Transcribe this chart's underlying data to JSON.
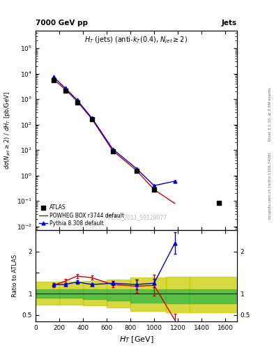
{
  "title_left": "7000 GeV pp",
  "title_right": "Jets",
  "watermark": "ATLAS_2011_S9128077",
  "right_label_top": "Rivet 3.1.10, ≥ 3.5M events",
  "right_label_bot": "mcplots.cern.ch [arXiv:1306.3436]",
  "xlabel": "$H_T$ [GeV]",
  "ylabel_main": "$d\\sigma(N_{jet} \\geq 2) / dH_{T}$ [pb/GeV]",
  "ylabel_ratio": "Ratio to ATLAS",
  "xlim": [
    0,
    1700
  ],
  "ylim_main_log": [
    0.007,
    500000.0
  ],
  "ylim_ratio": [
    0.35,
    2.5
  ],
  "atlas_x": [
    150,
    250,
    350,
    475,
    650,
    850,
    1000,
    1550
  ],
  "atlas_y": [
    5500,
    2200,
    750,
    160,
    9.0,
    1.5,
    0.27,
    0.085
  ],
  "powheg_x": [
    150,
    250,
    350,
    475,
    650,
    850,
    1000,
    1175
  ],
  "powheg_y": [
    6000,
    2400,
    820,
    165,
    9.5,
    1.6,
    0.28,
    0.08
  ],
  "pythia_x": [
    150,
    250,
    350,
    475,
    650,
    850,
    1000,
    1175
  ],
  "pythia_y": [
    7500,
    2700,
    920,
    180,
    11.0,
    1.9,
    0.4,
    0.6
  ],
  "powheg_ratio_x": [
    150,
    250,
    350,
    475,
    650,
    850,
    1000,
    1175
  ],
  "powheg_ratio_y": [
    1.2,
    1.3,
    1.42,
    1.38,
    1.22,
    1.18,
    1.2,
    0.38
  ],
  "powheg_ratio_yerr": [
    0.04,
    0.05,
    0.05,
    0.05,
    0.07,
    0.15,
    0.25,
    0.15
  ],
  "pythia_ratio_x": [
    150,
    250,
    350,
    475,
    650,
    850,
    1000,
    1175
  ],
  "pythia_ratio_y": [
    1.22,
    1.22,
    1.28,
    1.22,
    1.25,
    1.22,
    1.25,
    2.2
  ],
  "pythia_ratio_yerr": [
    0.03,
    0.03,
    0.04,
    0.04,
    0.05,
    0.12,
    0.1,
    0.25
  ],
  "green_band_xedges": [
    0,
    200,
    400,
    600,
    800,
    1100,
    1300,
    1700
  ],
  "green_band_low": [
    0.9,
    0.9,
    0.88,
    0.84,
    0.8,
    0.78,
    0.78,
    0.78
  ],
  "green_band_high": [
    1.1,
    1.1,
    1.1,
    1.1,
    1.1,
    1.1,
    1.1,
    1.1
  ],
  "yellow_band_xedges": [
    0,
    200,
    400,
    600,
    800,
    1100,
    1300,
    1700
  ],
  "yellow_band_low": [
    0.75,
    0.75,
    0.72,
    0.67,
    0.6,
    0.56,
    0.56,
    0.56
  ],
  "yellow_band_high": [
    1.28,
    1.28,
    1.3,
    1.33,
    1.38,
    1.4,
    1.4,
    1.4
  ],
  "atlas_color": "#000000",
  "powheg_color": "#cc0000",
  "pythia_color": "#0000cc",
  "green_color": "#44bb44",
  "yellow_color": "#cccc00",
  "bg_color": "#ffffff",
  "legend_atlas": "ATLAS",
  "legend_powheg": "POWHEG BOX r3744 default",
  "legend_pythia": "Pythia 8.308 default"
}
